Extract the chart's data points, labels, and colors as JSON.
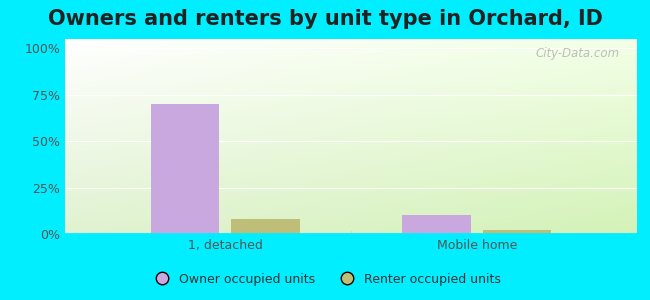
{
  "title": "Owners and renters by unit type in Orchard, ID",
  "categories": [
    "1, detached",
    "Mobile home"
  ],
  "owner_values": [
    70,
    10
  ],
  "renter_values": [
    8,
    2
  ],
  "owner_color": "#c9a8df",
  "renter_color": "#bebe78",
  "bar_width": 0.12,
  "yticks": [
    0,
    25,
    50,
    75,
    100
  ],
  "ytick_labels": [
    "0%",
    "25%",
    "50%",
    "75%",
    "100%"
  ],
  "ylim": [
    0,
    105
  ],
  "legend_owner": "Owner occupied units",
  "legend_renter": "Renter occupied units",
  "outer_background": "#00eeff",
  "watermark": "City-Data.com",
  "title_fontsize": 15,
  "tick_fontsize": 9,
  "legend_fontsize": 9
}
